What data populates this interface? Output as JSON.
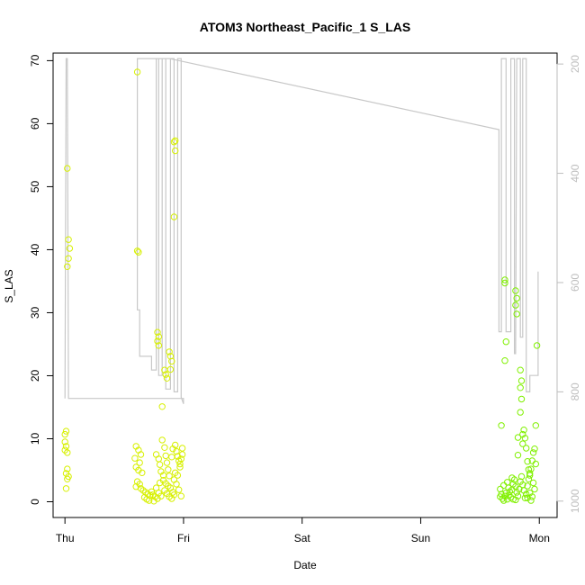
{
  "chart_data": {
    "type": "scatter",
    "title": "ATOM3 Northeast_Pacific_1 S_LAS",
    "xlabel": "Date",
    "ylabel": "S_LAS",
    "ylim": [
      -2.5,
      71.2
    ],
    "y_ticks": [
      0,
      10,
      20,
      30,
      40,
      50,
      60,
      70
    ],
    "xlim": [
      -0.1,
      4.15
    ],
    "x_ticks": [
      {
        "value": 0,
        "label": "Thu"
      },
      {
        "value": 1,
        "label": "Fri"
      },
      {
        "value": 2,
        "label": "Sat"
      },
      {
        "value": 3,
        "label": "Sun"
      },
      {
        "value": 4,
        "label": "Mon"
      }
    ],
    "y2_ticks": [
      200,
      400,
      600,
      800,
      1000
    ],
    "y2_range": [
      1030,
      180
    ],
    "colors": {
      "points_early": "#d7f000",
      "points_late": "#80f000",
      "depth_line": "#c8c8c8",
      "axes": "#000000",
      "right_axis": "#bdbdbd"
    },
    "series": [
      {
        "points": [
          [
            0.02,
            52.9
          ],
          [
            0.03,
            41.6
          ],
          [
            0.04,
            40.2
          ],
          [
            0.03,
            38.6
          ],
          [
            0.02,
            37.3
          ],
          [
            0.01,
            11.2
          ],
          [
            0.0,
            10.7
          ],
          [
            0.0,
            9.5
          ],
          [
            0.01,
            8.8
          ],
          [
            0.0,
            8.2
          ],
          [
            0.02,
            7.8
          ],
          [
            0.02,
            5.2
          ],
          [
            0.01,
            4.5
          ],
          [
            0.03,
            4.0
          ],
          [
            0.02,
            3.6
          ],
          [
            0.01,
            2.1
          ],
          [
            0.61,
            68.2
          ],
          [
            0.61,
            39.8
          ],
          [
            0.62,
            39.6
          ],
          [
            0.6,
            8.8
          ],
          [
            0.62,
            8.2
          ],
          [
            0.64,
            7.5
          ],
          [
            0.59,
            6.9
          ],
          [
            0.63,
            6.2
          ],
          [
            0.6,
            5.5
          ],
          [
            0.62,
            5.0
          ],
          [
            0.65,
            4.6
          ],
          [
            0.61,
            3.2
          ],
          [
            0.63,
            2.8
          ],
          [
            0.6,
            2.4
          ],
          [
            0.64,
            2.1
          ],
          [
            0.66,
            1.8
          ],
          [
            0.68,
            1.5
          ],
          [
            0.7,
            1.2
          ],
          [
            0.72,
            1.0
          ],
          [
            0.67,
            0.7
          ],
          [
            0.69,
            0.4
          ],
          [
            0.71,
            0.2
          ],
          [
            0.74,
            1.1
          ],
          [
            0.76,
            0.8
          ],
          [
            0.73,
            1.6
          ],
          [
            0.78,
            0.5
          ],
          [
            0.77,
            2.2
          ],
          [
            0.8,
            3.0
          ],
          [
            0.79,
            1.4
          ],
          [
            0.75,
            0.1
          ],
          [
            0.81,
            0.9
          ],
          [
            0.78,
            26.9
          ],
          [
            0.79,
            26.2
          ],
          [
            0.78,
            25.5
          ],
          [
            0.79,
            24.8
          ],
          [
            0.84,
            20.9
          ],
          [
            0.85,
            20.2
          ],
          [
            0.86,
            19.6
          ],
          [
            0.82,
            15.1
          ],
          [
            0.88,
            23.8
          ],
          [
            0.89,
            23.1
          ],
          [
            0.9,
            22.3
          ],
          [
            0.89,
            21.0
          ],
          [
            0.93,
            57.3
          ],
          [
            0.92,
            57.1
          ],
          [
            0.93,
            55.7
          ],
          [
            0.92,
            45.2
          ],
          [
            0.77,
            7.5
          ],
          [
            0.79,
            6.8
          ],
          [
            0.8,
            5.9
          ],
          [
            0.81,
            4.8
          ],
          [
            0.83,
            4.2
          ],
          [
            0.82,
            9.8
          ],
          [
            0.84,
            8.6
          ],
          [
            0.85,
            7.3
          ],
          [
            0.86,
            6.2
          ],
          [
            0.87,
            5.1
          ],
          [
            0.88,
            4.1
          ],
          [
            0.83,
            3.4
          ],
          [
            0.85,
            2.9
          ],
          [
            0.87,
            2.5
          ],
          [
            0.84,
            1.8
          ],
          [
            0.86,
            1.3
          ],
          [
            0.88,
            0.8
          ],
          [
            0.9,
            0.5
          ],
          [
            0.91,
            1.5
          ],
          [
            0.89,
            2.2
          ],
          [
            0.92,
            3.5
          ],
          [
            0.93,
            4.6
          ],
          [
            0.9,
            7.1
          ],
          [
            0.91,
            8.4
          ],
          [
            0.93,
            9.0
          ],
          [
            0.94,
            8.0
          ],
          [
            0.95,
            7.2
          ],
          [
            0.96,
            6.5
          ],
          [
            0.97,
            6.0
          ],
          [
            0.98,
            6.8
          ],
          [
            0.99,
            7.5
          ],
          [
            0.99,
            8.5
          ],
          [
            0.97,
            5.5
          ],
          [
            0.95,
            4.2
          ],
          [
            0.94,
            2.8
          ],
          [
            0.92,
            1.1
          ],
          [
            0.96,
            1.9
          ],
          [
            0.98,
            0.9
          ]
        ]
      },
      {
        "points": [
          [
            3.68,
            12.1
          ],
          [
            3.67,
            2.0
          ],
          [
            3.68,
            1.2
          ],
          [
            3.67,
            0.8
          ],
          [
            3.69,
            0.5
          ],
          [
            3.7,
            0.2
          ],
          [
            3.71,
            0.9
          ],
          [
            3.72,
            1.4
          ],
          [
            3.7,
            2.6
          ],
          [
            3.73,
            3.1
          ],
          [
            3.74,
            2.2
          ],
          [
            3.75,
            1.6
          ],
          [
            3.73,
            0.4
          ],
          [
            3.76,
            0.7
          ],
          [
            3.77,
            1.9
          ],
          [
            3.78,
            2.8
          ],
          [
            3.79,
            3.5
          ],
          [
            3.8,
            2.4
          ],
          [
            3.81,
            1.5
          ],
          [
            3.82,
            0.9
          ],
          [
            3.8,
            0.3
          ],
          [
            3.83,
            2.0
          ],
          [
            3.84,
            3.2
          ],
          [
            3.85,
            4.0
          ],
          [
            3.86,
            2.7
          ],
          [
            3.87,
            1.8
          ],
          [
            3.88,
            0.6
          ],
          [
            3.89,
            1.2
          ],
          [
            3.9,
            2.5
          ],
          [
            3.91,
            3.6
          ],
          [
            3.92,
            4.5
          ],
          [
            3.93,
            5.2
          ],
          [
            3.94,
            6.5
          ],
          [
            3.95,
            7.8
          ],
          [
            3.96,
            8.4
          ],
          [
            3.97,
            6.0
          ],
          [
            3.95,
            3.0
          ],
          [
            3.96,
            2.0
          ],
          [
            3.94,
            0.8
          ],
          [
            3.93,
            0.2
          ],
          [
            3.97,
            12.1
          ],
          [
            3.71,
            35.2
          ],
          [
            3.71,
            34.7
          ],
          [
            3.72,
            25.4
          ],
          [
            3.71,
            22.4
          ],
          [
            3.8,
            33.5
          ],
          [
            3.81,
            32.3
          ],
          [
            3.8,
            31.2
          ],
          [
            3.81,
            29.8
          ],
          [
            3.84,
            20.9
          ],
          [
            3.85,
            19.2
          ],
          [
            3.84,
            18.1
          ],
          [
            3.85,
            16.3
          ],
          [
            3.84,
            14.2
          ],
          [
            3.87,
            11.4
          ],
          [
            3.86,
            10.7
          ],
          [
            3.88,
            10.1
          ],
          [
            3.82,
            10.2
          ],
          [
            3.86,
            9.2
          ],
          [
            3.89,
            8.5
          ],
          [
            3.82,
            7.4
          ],
          [
            3.9,
            6.4
          ],
          [
            3.91,
            5.1
          ],
          [
            3.92,
            4.2
          ],
          [
            3.98,
            24.8
          ],
          [
            3.77,
            3.8
          ],
          [
            3.74,
            1.0
          ],
          [
            3.78,
            0.4
          ],
          [
            3.92,
            1.4
          ],
          [
            3.9,
            0.6
          ]
        ]
      }
    ],
    "depth_line": [
      [
        0.0,
        812
      ],
      [
        0.01,
        190
      ],
      [
        0.02,
        190
      ],
      [
        0.03,
        812
      ],
      [
        1.0,
        812
      ],
      [
        1.0,
        822
      ],
      [
        0.98,
        810
      ],
      [
        0.98,
        190
      ],
      [
        0.95,
        190
      ],
      [
        0.95,
        800
      ],
      [
        0.92,
        800
      ],
      [
        0.92,
        190
      ],
      [
        0.89,
        190
      ],
      [
        0.89,
        795
      ],
      [
        0.85,
        795
      ],
      [
        0.85,
        190
      ],
      [
        0.82,
        190
      ],
      [
        0.82,
        770
      ],
      [
        0.79,
        770
      ],
      [
        0.79,
        190
      ],
      [
        0.77,
        190
      ],
      [
        0.77,
        760
      ],
      [
        0.73,
        760
      ],
      [
        0.73,
        735
      ],
      [
        0.63,
        735
      ],
      [
        0.63,
        650
      ],
      [
        0.61,
        650
      ],
      [
        0.61,
        190
      ],
      [
        0.88,
        190
      ],
      [
        3.66,
        320
      ],
      [
        3.66,
        690
      ],
      [
        3.68,
        690
      ],
      [
        3.68,
        190
      ],
      [
        3.72,
        190
      ],
      [
        3.72,
        690
      ],
      [
        3.76,
        690
      ],
      [
        3.76,
        190
      ],
      [
        3.79,
        190
      ],
      [
        3.79,
        730
      ],
      [
        3.8,
        730
      ],
      [
        3.81,
        190
      ],
      [
        3.84,
        190
      ],
      [
        3.84,
        700
      ],
      [
        3.86,
        700
      ],
      [
        3.86,
        190
      ],
      [
        3.89,
        190
      ],
      [
        3.89,
        800
      ],
      [
        3.92,
        800
      ],
      [
        3.92,
        770
      ],
      [
        3.99,
        770
      ],
      [
        3.99,
        580
      ]
    ]
  }
}
